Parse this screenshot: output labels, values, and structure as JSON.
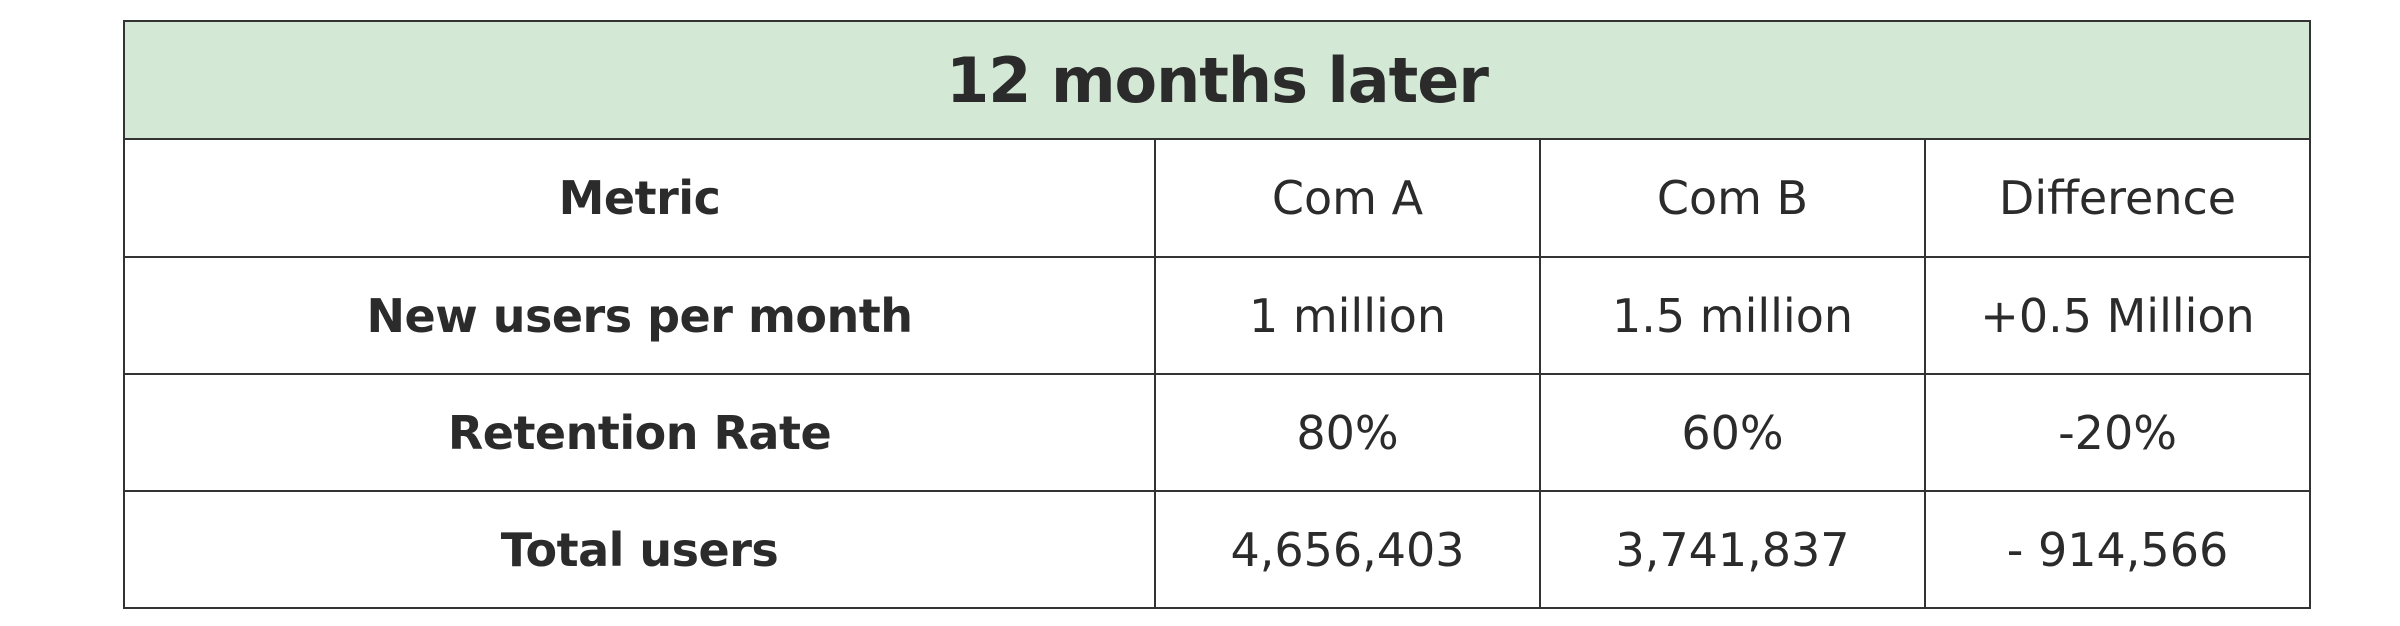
{
  "table": {
    "title": "12 months later",
    "headers": [
      "Metric",
      "Com A",
      "Com B",
      "Difference"
    ],
    "rows": [
      [
        "New users per month",
        "1 million",
        "1.5 million",
        "+0.5 Million"
      ],
      [
        "Retention Rate",
        "80%",
        "60%",
        "-20%"
      ],
      [
        "Total users",
        "4,656,403",
        "3,741,837",
        "- 914,566"
      ]
    ]
  },
  "colors": {
    "title_background": "#d3e8d5",
    "text": "#2b2b2b",
    "border": "#333333"
  }
}
